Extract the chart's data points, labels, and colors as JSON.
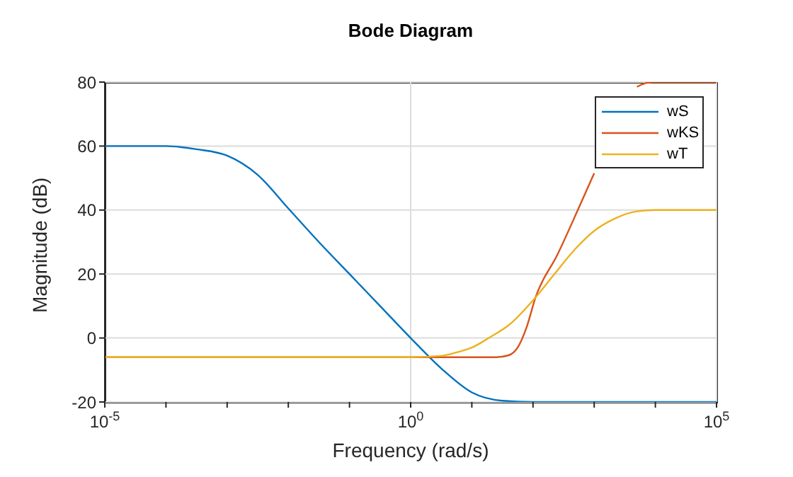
{
  "chart_data": {
    "type": "line",
    "title": "Bode Diagram",
    "xlabel": "Frequency (rad/s)",
    "ylabel": "Magnitude (dB)",
    "log": "x",
    "grid": true,
    "legend": "top right",
    "line_style": "solid",
    "xlim": [
      1e-05,
      100000
    ],
    "xticks": [
      {
        "value": 1e-05,
        "label": "10$^{-5}$"
      },
      {
        "value": 0.0001,
        "label": null
      },
      {
        "value": 0.001,
        "label": null
      },
      {
        "value": 0.01,
        "label": null
      },
      {
        "value": 0.1,
        "label": null
      },
      {
        "value": 1,
        "label": "10$^{0}$"
      },
      {
        "value": 10,
        "label": null
      },
      {
        "value": 100,
        "label": null
      },
      {
        "value": 1000,
        "label": null
      },
      {
        "value": 10000,
        "label": null
      },
      {
        "value": 100000,
        "label": "10$^{5}$"
      }
    ],
    "ylim": [
      -20,
      80
    ],
    "yticks": [
      -20,
      0,
      20,
      40,
      60,
      80
    ],
    "series": [
      {
        "name": "wS",
        "color": "#0072bd",
        "x": [
          1e-05,
          0.0001,
          0.000316,
          0.001,
          0.00316,
          0.01,
          0.0316,
          0.1,
          0.316,
          1,
          3.16,
          10,
          31.6,
          100,
          1000,
          10000,
          100000
        ],
        "values": [
          60,
          60,
          59,
          57,
          51,
          40.5,
          30,
          20,
          10,
          0,
          -9.5,
          -17,
          -19.6,
          -20,
          -20,
          -20,
          -20
        ]
      },
      {
        "name": "wKS",
        "color": "#d95319",
        "x": [
          1e-05,
          0.001,
          1,
          10,
          25,
          40,
          56,
          79,
          110,
          250,
          540,
          1000,
          1800,
          3200,
          5000,
          7000,
          10000,
          30000,
          100000
        ],
        "values": [
          -6,
          -6,
          -6,
          -6,
          -6,
          -5.4,
          -3,
          3.5,
          12.7,
          26,
          40,
          51.5,
          null,
          null,
          78.5,
          79.7,
          80,
          80,
          80
        ]
      },
      {
        "name": "wT",
        "color": "#edb120",
        "x": [
          1e-05,
          0.001,
          1,
          3.16,
          5.62,
          10,
          20,
          40,
          110,
          224,
          500,
          1000,
          2000,
          5000,
          10000,
          30000,
          100000
        ],
        "values": [
          -6,
          -6,
          -6,
          -5.6,
          -4.5,
          -3,
          0.3,
          4,
          12.7,
          20,
          28,
          33.5,
          37,
          39.6,
          40,
          40,
          40
        ]
      }
    ]
  }
}
